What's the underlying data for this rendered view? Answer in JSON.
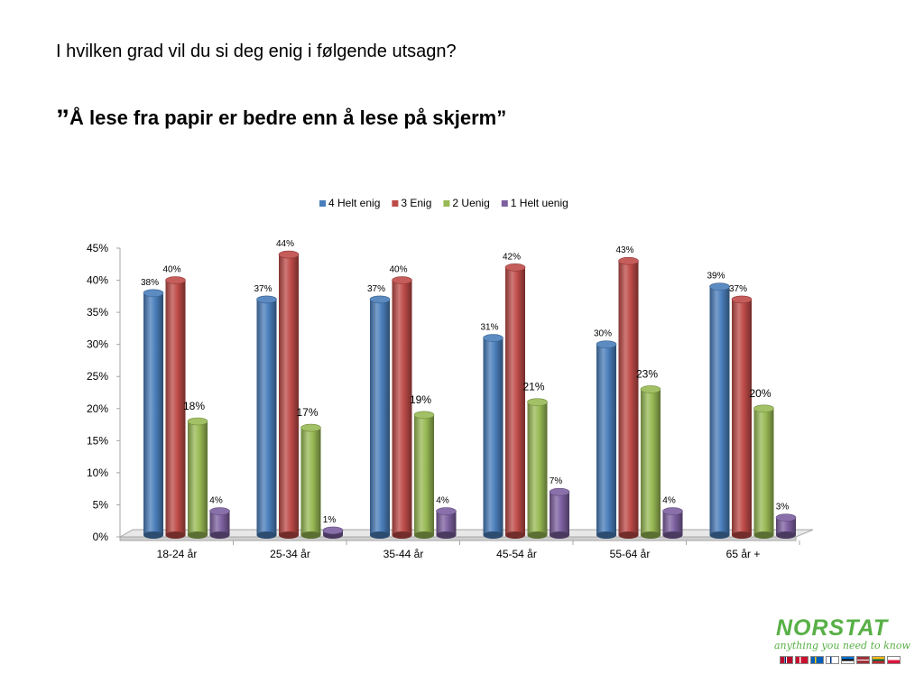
{
  "question": "I hvilken grad vil du si deg enig i følgende utsagn?",
  "statement": {
    "open_quote": "”",
    "text": "Å lese fra papir er bedre enn å lese på skjerm”"
  },
  "logo": {
    "wordmark": "NORSTAT",
    "tagline": "anything you need to know"
  },
  "chart_data": {
    "type": "bar",
    "categories": [
      "18-24 år",
      "25-34 år",
      "35-44 år",
      "45-54 år",
      "55-64 år",
      "65 år +"
    ],
    "series": [
      {
        "name": "4 Helt enig",
        "color": "#4a7ebb",
        "values": [
          38,
          37,
          37,
          31,
          30,
          39
        ]
      },
      {
        "name": "3 Enig",
        "color": "#be4b48",
        "values": [
          40,
          44,
          40,
          42,
          43,
          37
        ]
      },
      {
        "name": "2 Uenig",
        "color": "#98b954",
        "values": [
          18,
          17,
          19,
          21,
          23,
          20
        ]
      },
      {
        "name": "1 Helt uenig",
        "color": "#7d60a0",
        "values": [
          4,
          1,
          4,
          7,
          4,
          3
        ]
      }
    ],
    "value_suffix": "%",
    "yticks": [
      "0%",
      "5%",
      "10%",
      "15%",
      "20%",
      "25%",
      "30%",
      "35%",
      "40%",
      "45%"
    ],
    "ylim": [
      0,
      45
    ],
    "legend_position": "top",
    "grid": false,
    "style": "3d-cylinder"
  }
}
